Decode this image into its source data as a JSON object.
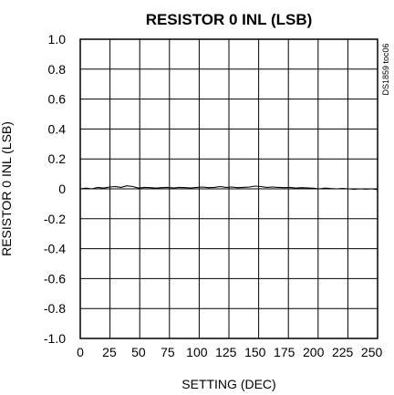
{
  "chart_data": {
    "type": "line",
    "title": "RESISTOR 0 INL (LSB)",
    "xlabel": "SETTING (DEC)",
    "ylabel": "RESISTOR 0 INL (LSB)",
    "figure_id": "DS1859 toc06",
    "xlim": [
      0,
      255
    ],
    "ylim": [
      -1.0,
      1.0
    ],
    "grid": true,
    "x_ticks": [
      0,
      25,
      50,
      75,
      100,
      125,
      150,
      175,
      200,
      225,
      250
    ],
    "x_tick_labels": [
      "0",
      "25",
      "50",
      "75",
      "100",
      "125",
      "150",
      "175",
      "200",
      "225",
      "250"
    ],
    "y_ticks": [
      1.0,
      0.8,
      0.6,
      0.4,
      0.2,
      0,
      -0.2,
      -0.4,
      -0.6,
      -0.8,
      -1.0
    ],
    "y_tick_labels": [
      "1.0",
      "0.8",
      "0.6",
      "0.4",
      "0.2",
      "0",
      "-0.2",
      "-0.4",
      "-0.6",
      "-0.8",
      "-1.0"
    ],
    "series": [
      {
        "x": [
          0,
          5,
          10,
          15,
          20,
          25,
          30,
          35,
          40,
          45,
          50,
          55,
          60,
          65,
          70,
          75,
          80,
          85,
          90,
          95,
          100,
          105,
          110,
          115,
          120,
          125,
          130,
          135,
          140,
          145,
          150,
          155,
          160,
          165,
          170,
          175,
          180,
          185,
          190,
          195,
          200,
          205,
          210,
          215,
          220,
          225,
          230,
          235,
          240,
          245,
          250,
          255
        ],
        "values": [
          0.0,
          0.005,
          0.0,
          0.01,
          0.005,
          0.012,
          0.015,
          0.01,
          0.02,
          0.015,
          0.005,
          0.01,
          0.008,
          0.005,
          0.008,
          0.01,
          0.006,
          0.01,
          0.008,
          0.006,
          0.01,
          0.012,
          0.008,
          0.01,
          0.015,
          0.01,
          0.012,
          0.008,
          0.01,
          0.012,
          0.018,
          0.015,
          0.01,
          0.012,
          0.01,
          0.008,
          0.01,
          0.005,
          0.008,
          0.006,
          0.004,
          0.0,
          0.005,
          0.002,
          0.0,
          0.003,
          0.0,
          -0.003,
          0.0,
          -0.002,
          0.0,
          -0.005
        ]
      }
    ]
  }
}
